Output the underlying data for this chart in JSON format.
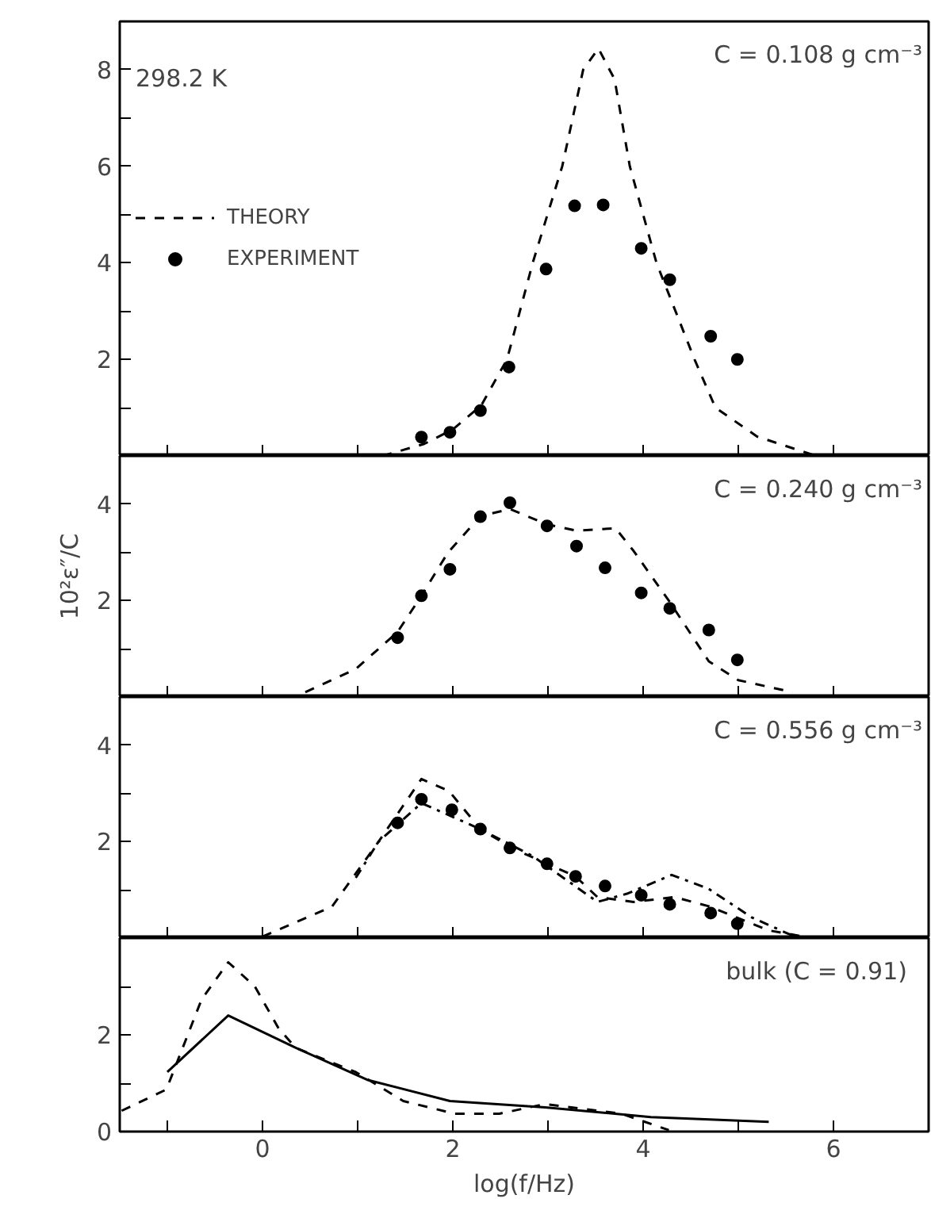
{
  "chart_data": [
    {
      "type": "line",
      "xlim": [
        -1.5,
        7
      ],
      "ylim": [
        0,
        9
      ],
      "xticks": [
        {
          "value": -1,
          "label": null
        },
        {
          "value": 0,
          "label": null
        },
        {
          "value": 1,
          "label": null
        },
        {
          "value": 2,
          "label": null
        },
        {
          "value": 3,
          "label": null
        },
        {
          "value": 4,
          "label": null
        },
        {
          "value": 5,
          "label": null
        },
        {
          "value": 6,
          "label": null
        }
      ],
      "yticks": [
        {
          "value": 1,
          "label": null
        },
        2,
        {
          "value": 3,
          "label": null
        },
        4,
        {
          "value": 5,
          "label": null
        },
        6,
        {
          "value": 7,
          "label": null
        },
        8
      ],
      "tick_labels": "y",
      "grid": false,
      "legend": "left",
      "annotations": [
        "298.2 K",
        "C = 0.108 g cm⁻³"
      ],
      "series": [
        {
          "name": "THEORY",
          "type": "line",
          "line_style": "dashed",
          "color": "#000000",
          "x": [
            1.26,
            1.7,
            2.0,
            2.3,
            2.57,
            2.84,
            3.15,
            3.37,
            3.53,
            3.7,
            3.86,
            4.14,
            4.54,
            4.76,
            5.2,
            5.82
          ],
          "values": [
            0,
            0.25,
            0.55,
            1.05,
            2.0,
            4.0,
            6.0,
            8.0,
            8.44,
            7.8,
            6.0,
            4.0,
            2.0,
            1.0,
            0.4,
            0
          ]
        },
        {
          "name": "EXPERIMENT",
          "type": "scatter",
          "marker": "circle",
          "color": "#000000",
          "x": [
            1.67,
            1.97,
            2.29,
            2.59,
            2.98,
            3.28,
            3.58,
            3.98,
            4.28,
            4.71,
            4.99
          ],
          "values": [
            0.39,
            0.49,
            0.94,
            1.84,
            3.87,
            5.18,
            5.2,
            4.3,
            3.65,
            2.48,
            2.0
          ]
        }
      ]
    },
    {
      "type": "line",
      "xlim": [
        -1.5,
        7
      ],
      "ylim": [
        0,
        5
      ],
      "ylabel": "10²ε″/C",
      "xticks": [
        {
          "value": -1,
          "label": null
        },
        {
          "value": 0,
          "label": null
        },
        {
          "value": 1,
          "label": null
        },
        {
          "value": 2,
          "label": null
        },
        {
          "value": 3,
          "label": null
        },
        {
          "value": 4,
          "label": null
        },
        {
          "value": 5,
          "label": null
        },
        {
          "value": 6,
          "label": null
        }
      ],
      "yticks": [
        {
          "value": 1,
          "label": null
        },
        2,
        {
          "value": 3,
          "label": null
        },
        4
      ],
      "tick_labels": "y",
      "grid": false,
      "annotations": [
        "C = 0.240 g cm⁻³"
      ],
      "series": [
        {
          "type": "line",
          "line_style": "dashed",
          "color": "#000000",
          "x": [
            0.45,
            0.98,
            1.42,
            1.67,
            1.95,
            2.29,
            2.6,
            2.99,
            3.3,
            3.71,
            3.9,
            4.28,
            4.69,
            5.0,
            5.57
          ],
          "values": [
            0.1,
            0.58,
            1.35,
            2.1,
            3.0,
            3.75,
            3.9,
            3.58,
            3.45,
            3.5,
            3.03,
            1.97,
            0.74,
            0.35,
            0.1
          ]
        },
        {
          "type": "scatter",
          "marker": "circle",
          "color": "#000000",
          "x": [
            1.42,
            1.67,
            1.97,
            2.29,
            2.6,
            2.99,
            3.3,
            3.6,
            3.98,
            4.28,
            4.69,
            4.99
          ],
          "values": [
            1.23,
            2.1,
            2.65,
            3.74,
            4.03,
            3.55,
            3.13,
            2.68,
            2.16,
            1.84,
            1.39,
            0.77
          ]
        }
      ]
    },
    {
      "type": "line",
      "xlim": [
        -1.5,
        7
      ],
      "ylim": [
        0,
        5
      ],
      "xticks": [
        {
          "value": -1,
          "label": null
        },
        {
          "value": 0,
          "label": null
        },
        {
          "value": 1,
          "label": null
        },
        {
          "value": 2,
          "label": null
        },
        {
          "value": 3,
          "label": null
        },
        {
          "value": 4,
          "label": null
        },
        {
          "value": 5,
          "label": null
        },
        {
          "value": 6,
          "label": null
        }
      ],
      "yticks": [
        {
          "value": 1,
          "label": null
        },
        2,
        {
          "value": 3,
          "label": null
        },
        4
      ],
      "tick_labels": "y",
      "grid": false,
      "annotations": [
        "C = 0.556 g cm⁻³"
      ],
      "series": [
        {
          "type": "line",
          "line_style": "dashed",
          "color": "#000000",
          "x": [
            0.0,
            0.73,
            1.22,
            1.67,
            1.96,
            2.29,
            2.65,
            3.29,
            3.52,
            3.9,
            4.33,
            4.69,
            5.32,
            5.72
          ],
          "values": [
            0.03,
            0.65,
            2.0,
            3.3,
            3.05,
            2.26,
            1.84,
            1.28,
            0.85,
            0.75,
            0.85,
            0.66,
            0.16,
            0.02
          ]
        },
        {
          "type": "line",
          "line_style": "dashdot",
          "color": "#000000",
          "x": [
            0.98,
            1.22,
            1.67,
            2.29,
            2.84,
            3.52,
            3.83,
            4.3,
            4.69,
            5.14,
            5.57
          ],
          "values": [
            1.25,
            2.0,
            2.8,
            2.26,
            1.7,
            0.75,
            0.92,
            1.31,
            1.02,
            0.43,
            0.05
          ]
        },
        {
          "type": "scatter",
          "marker": "circle",
          "color": "#000000",
          "x": [
            1.42,
            1.67,
            1.99,
            2.29,
            2.6,
            2.99,
            3.29,
            3.6,
            3.98,
            4.28,
            4.71,
            4.99
          ],
          "values": [
            2.39,
            2.88,
            2.66,
            2.26,
            1.87,
            1.54,
            1.28,
            1.08,
            0.89,
            0.7,
            0.52,
            0.3
          ]
        }
      ]
    },
    {
      "type": "line",
      "xlim": [
        -1.5,
        7
      ],
      "ylim": [
        0,
        4
      ],
      "xlabel": "log(f/Hz)",
      "xticks": [
        {
          "value": -1,
          "label": null
        },
        0,
        {
          "value": 1,
          "label": null
        },
        2,
        {
          "value": 3,
          "label": null
        },
        4,
        {
          "value": 5,
          "label": null
        },
        6
      ],
      "yticks": [
        0,
        {
          "value": 1,
          "label": null
        },
        2,
        {
          "value": 3,
          "label": null
        }
      ],
      "grid": false,
      "annotations": [
        "bulk   (C = 0.91)"
      ],
      "series": [
        {
          "type": "line",
          "line_style": "dashed",
          "color": "#000000",
          "x": [
            -1.48,
            -1.01,
            -0.64,
            -0.36,
            -0.08,
            0.17,
            0.35,
            0.98,
            1.48,
            2.02,
            2.49,
            2.97,
            3.77,
            4.27
          ],
          "values": [
            0.43,
            0.87,
            2.73,
            3.5,
            3.0,
            2.13,
            1.73,
            1.23,
            0.63,
            0.37,
            0.37,
            0.57,
            0.37,
            0.03
          ]
        },
        {
          "type": "line",
          "line_style": "solid",
          "color": "#000000",
          "x": [
            -1.0,
            -0.36,
            0.35,
            1.1,
            1.97,
            2.97,
            4.08,
            5.32
          ],
          "values": [
            1.23,
            2.4,
            1.73,
            1.07,
            0.63,
            0.5,
            0.3,
            0.2
          ]
        }
      ]
    }
  ]
}
